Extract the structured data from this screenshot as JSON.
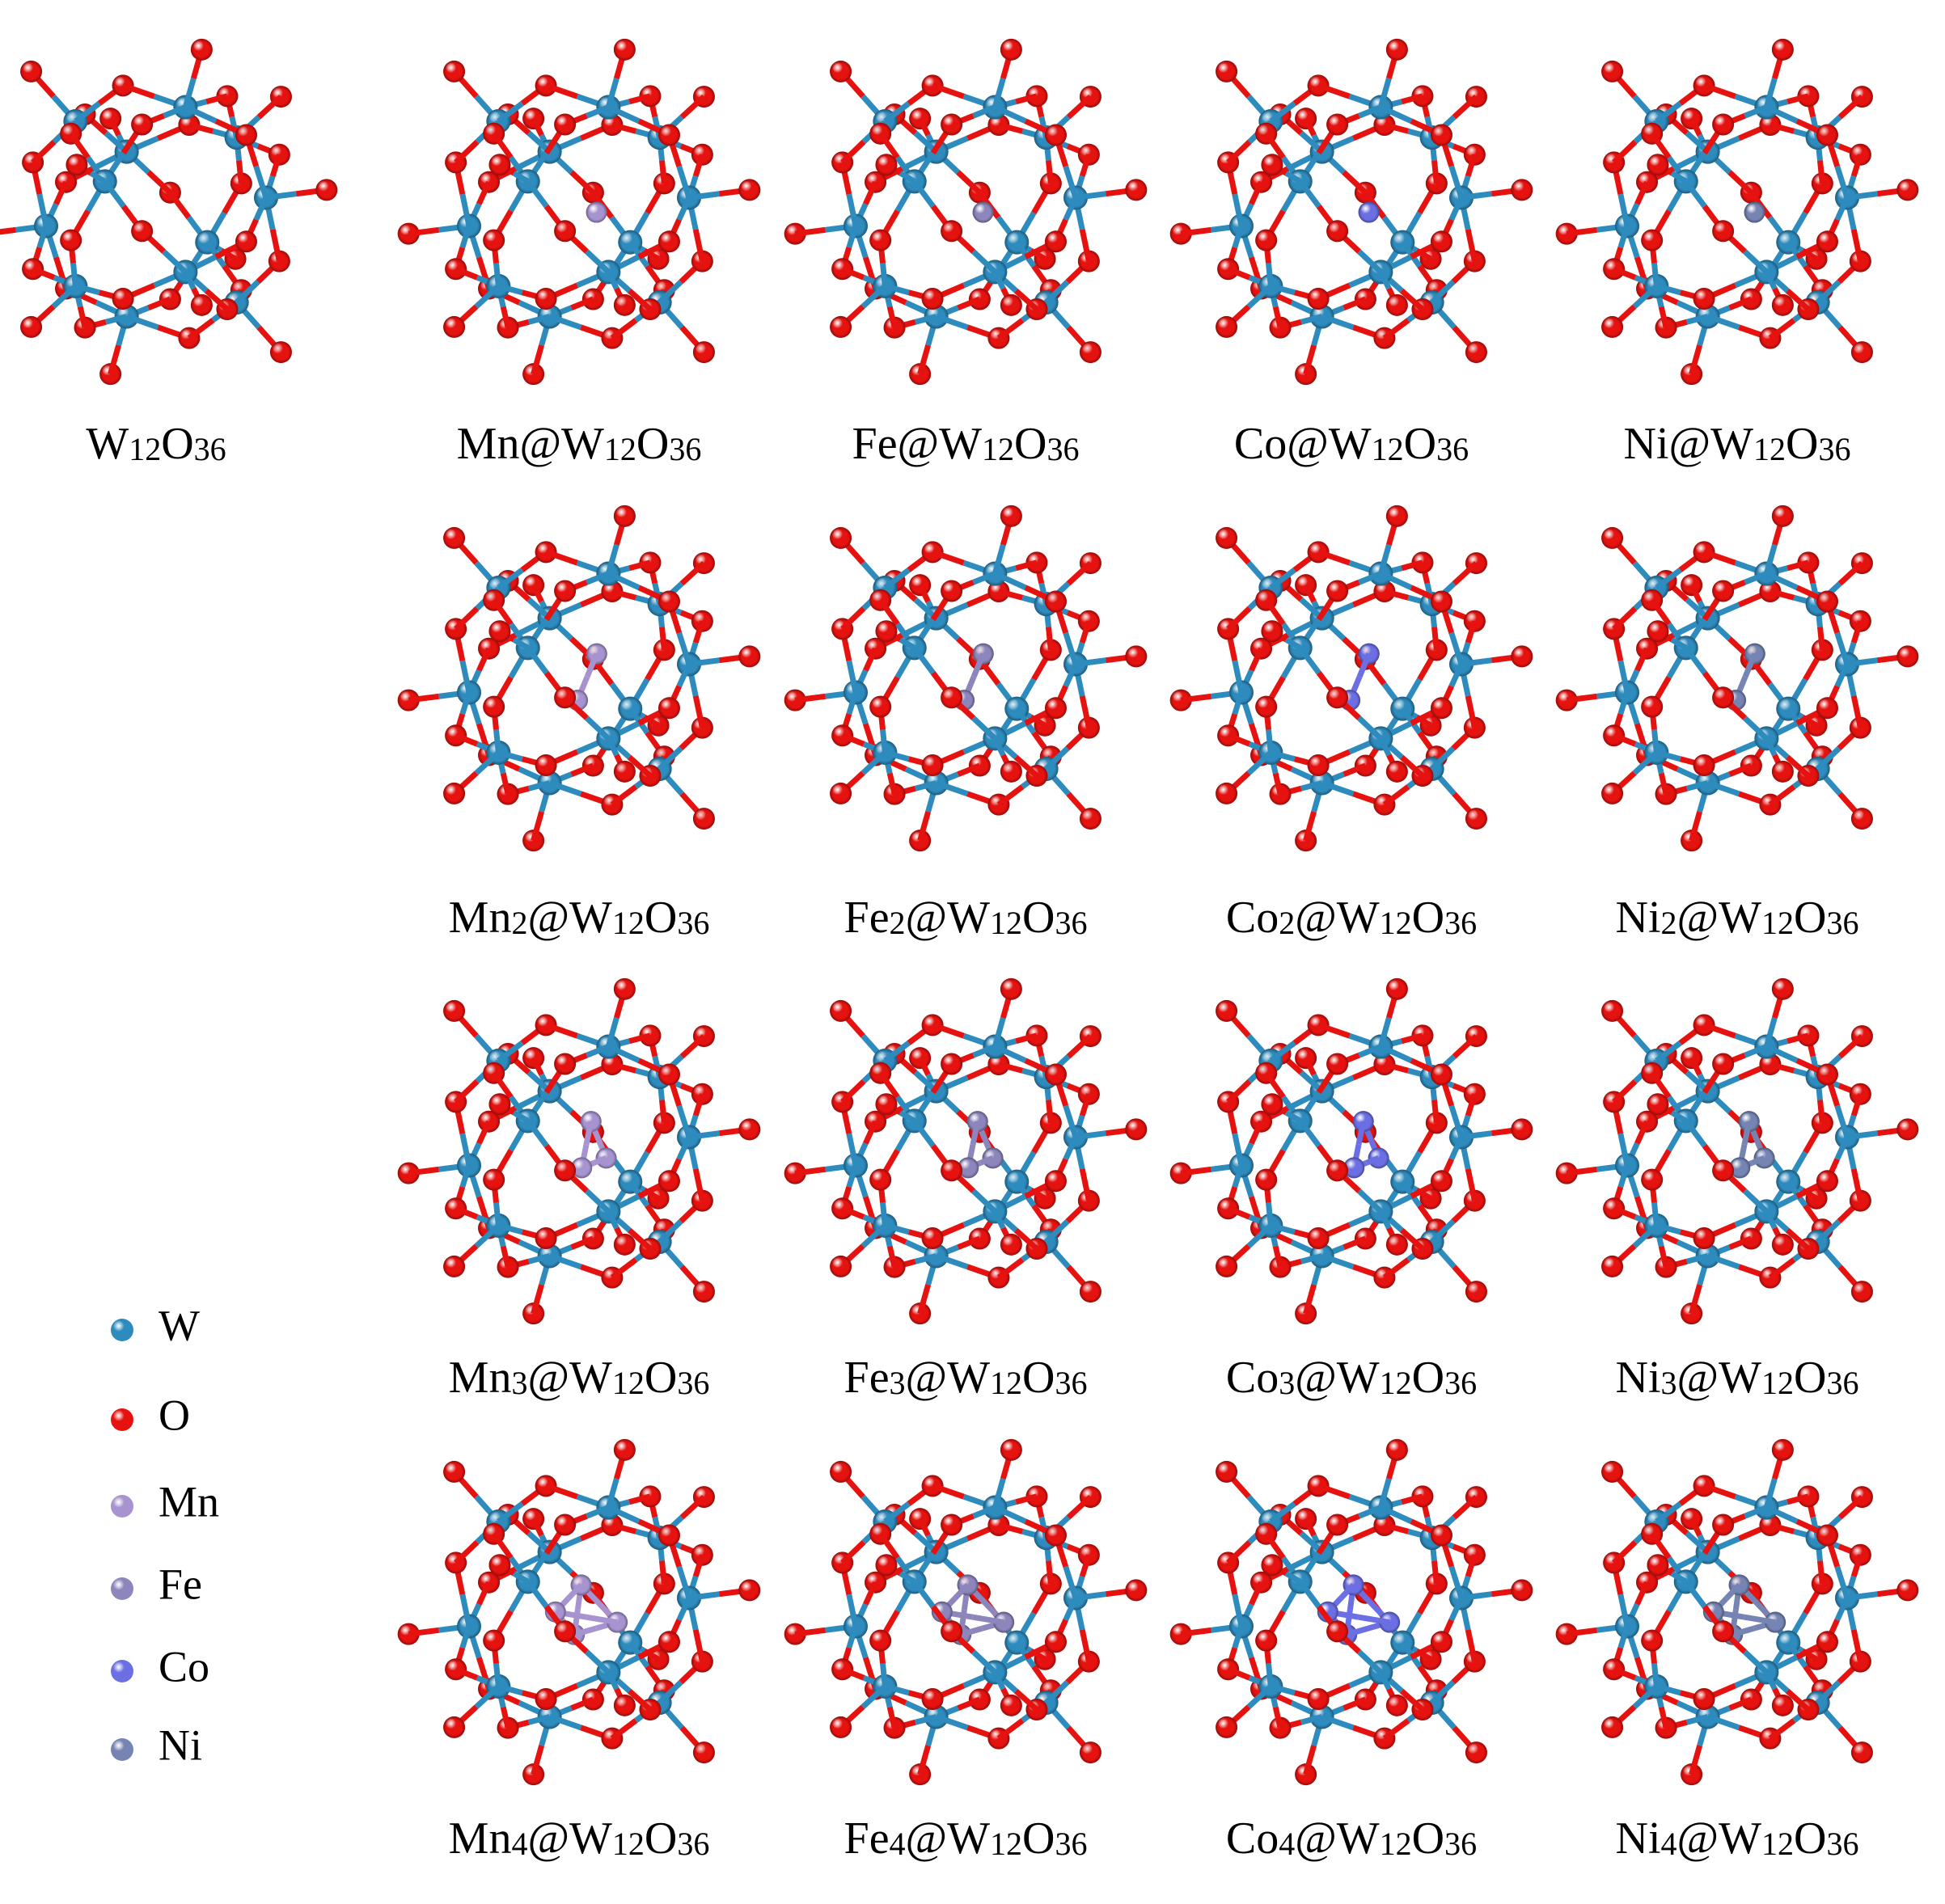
{
  "structures": [
    "W12O36",
    "Mn@W12O36",
    "Fe@W12O36",
    "Co@W12O36",
    "Ni@W12O36",
    "Mn2@W12O36",
    "Fe2@W12O36",
    "Co2@W12O36",
    "Ni2@W12O36",
    "Mn3@W12O36",
    "Fe3@W12O36",
    "Co3@W12O36",
    "Ni3@W12O36",
    "Mn4@W12O36",
    "Fe4@W12O36",
    "Co4@W12O36",
    "Ni4@W12O36"
  ],
  "legend": [
    {
      "label": "W",
      "color": "#2e8bbd"
    },
    {
      "label": "O",
      "color": "#e5120f"
    },
    {
      "label": "Mn",
      "color": "#a793cf"
    },
    {
      "label": "Fe",
      "color": "#8c86bc"
    },
    {
      "label": "Co",
      "color": "#6b6fe3"
    },
    {
      "label": "Ni",
      "color": "#7584b3"
    }
  ]
}
